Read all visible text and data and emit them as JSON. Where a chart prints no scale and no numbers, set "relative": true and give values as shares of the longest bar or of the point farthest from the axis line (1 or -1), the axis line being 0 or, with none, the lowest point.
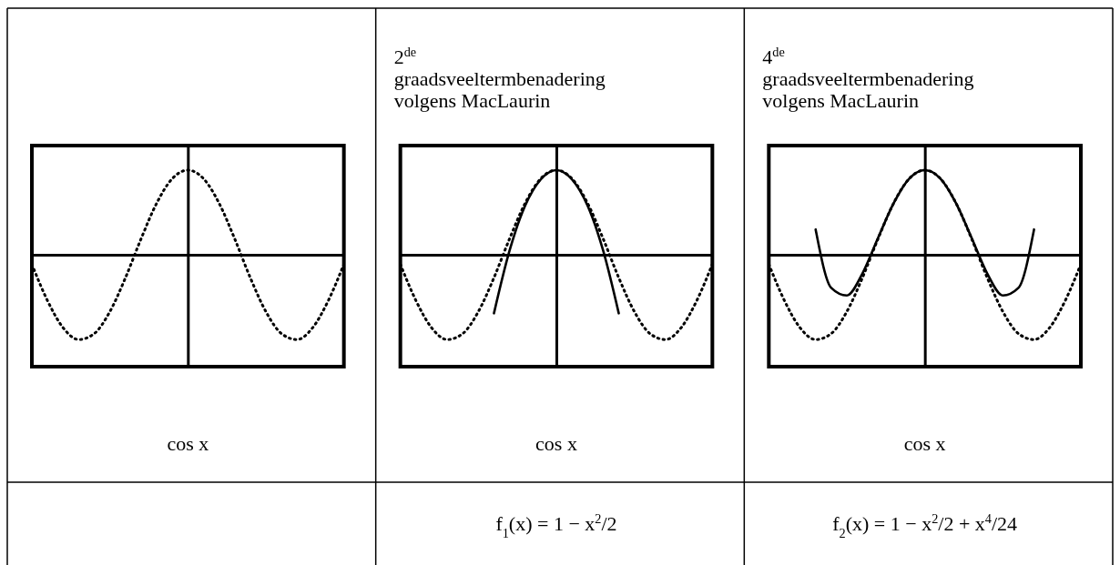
{
  "chart_data": [
    {
      "type": "line",
      "relative": true,
      "tick_labels": false,
      "categories": [
        null,
        null,
        null,
        null,
        null,
        null,
        null,
        null,
        null,
        null,
        null,
        null,
        null,
        null,
        null,
        null,
        null,
        null,
        null,
        null,
        null
      ],
      "annotations": [
        "cos x"
      ],
      "series": [
        {
          "color": "#000000",
          "line_style": "dotted",
          "values": [
            -0.11,
            -0.54,
            -0.86,
            -1.0,
            -0.93,
            -0.67,
            -0.27,
            0.19,
            0.61,
            0.9,
            1,
            0.9,
            0.61,
            0.19,
            -0.27,
            -0.67,
            -0.93,
            -1.0,
            -0.86,
            -0.54,
            -0.11
          ]
        }
      ]
    },
    {
      "type": "line",
      "relative": true,
      "tick_labels": false,
      "title": "2$^{de}$ graadsveeltermbenadering volgens MacLaurin",
      "categories": [
        null,
        null,
        null,
        null,
        null,
        null,
        null,
        null,
        null,
        null,
        null,
        null,
        null,
        null,
        null,
        null,
        null,
        null,
        null,
        null,
        null
      ],
      "annotations": [
        "cos x",
        "f$_{1}$(x) = 1 − x$^{2}$/2"
      ],
      "series": [
        {
          "color": "#000000",
          "line_style": "dotted",
          "values": [
            -0.11,
            -0.54,
            -0.86,
            -1.0,
            -0.93,
            -0.67,
            -0.27,
            0.19,
            0.61,
            0.9,
            1,
            0.9,
            0.61,
            0.19,
            -0.27,
            -0.67,
            -0.93,
            -1.0,
            -0.86,
            -0.54,
            -0.11
          ]
        },
        {
          "color": "#000000",
          "line_style": "solid",
          "values": [
            null,
            null,
            null,
            null,
            null,
            null,
            -0.69,
            0.05,
            0.58,
            0.89,
            1,
            0.89,
            0.58,
            0.05,
            -0.69,
            null,
            null,
            null,
            null,
            null,
            null
          ]
        }
      ]
    },
    {
      "type": "line",
      "relative": true,
      "tick_labels": false,
      "title": "4$^{de}$ graadsveeltermbenadering volgens MacLaurin",
      "categories": [
        null,
        null,
        null,
        null,
        null,
        null,
        null,
        null,
        null,
        null,
        null,
        null,
        null,
        null,
        null,
        null,
        null,
        null,
        null,
        null,
        null
      ],
      "annotations": [
        "cos x",
        "f$_{2}$(x) = 1 − x$^{2}$/2 + x$^{4}$/24"
      ],
      "series": [
        {
          "color": "#000000",
          "line_style": "dotted",
          "values": [
            -0.11,
            -0.54,
            -0.86,
            -1.0,
            -0.93,
            -0.67,
            -0.27,
            0.19,
            0.61,
            0.9,
            1,
            0.9,
            0.61,
            0.19,
            -0.27,
            -0.67,
            -0.93,
            -1.0,
            -0.86,
            -0.54,
            -0.11
          ]
        },
        {
          "color": "#000000",
          "line_style": "solid",
          "values": [
            null,
            null,
            null,
            0.3,
            -0.39,
            -0.48,
            -0.22,
            0.2,
            0.61,
            0.9,
            1,
            0.9,
            0.61,
            0.2,
            -0.22,
            -0.48,
            -0.39,
            0.3,
            null,
            null,
            null
          ]
        }
      ]
    }
  ]
}
